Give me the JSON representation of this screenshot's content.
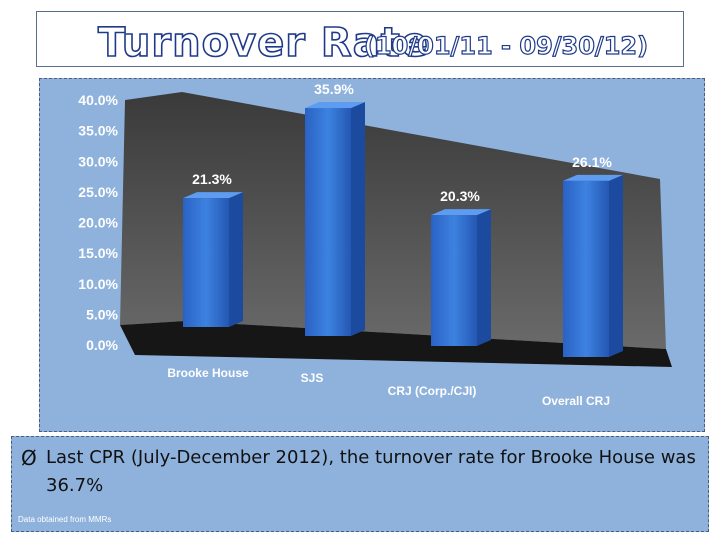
{
  "title": {
    "main": "Turnover Rate",
    "range": "(10/01/11 - 09/30/12)"
  },
  "chart_data": {
    "type": "bar",
    "title": "",
    "xlabel": "",
    "ylabel": "",
    "categories": [
      "Brooke House",
      "SJS",
      "CRJ (Corp./CJI)",
      "Overall CRJ"
    ],
    "values": [
      21.3,
      35.9,
      20.3,
      26.1
    ],
    "data_labels": [
      "21.3%",
      "35.9%",
      "20.3%",
      "26.1%"
    ],
    "y_ticks": [
      "0.0%",
      "5.0%",
      "10.0%",
      "15.0%",
      "20.0%",
      "25.0%",
      "30.0%",
      "35.0%",
      "40.0%"
    ],
    "ylim": [
      0,
      40
    ],
    "grid": false,
    "legend": "none",
    "colors": {
      "bar": "#2e6fd0",
      "back_wall": "#4a4a4a",
      "floor": "#1a1a1a",
      "background": "#8fb2dd"
    }
  },
  "bullet": {
    "symbol": "Ø",
    "text": "Last CPR (July-December 2012), the turnover rate for Brooke House was 36.7%"
  },
  "footnote": "Data obtained from MMRs"
}
